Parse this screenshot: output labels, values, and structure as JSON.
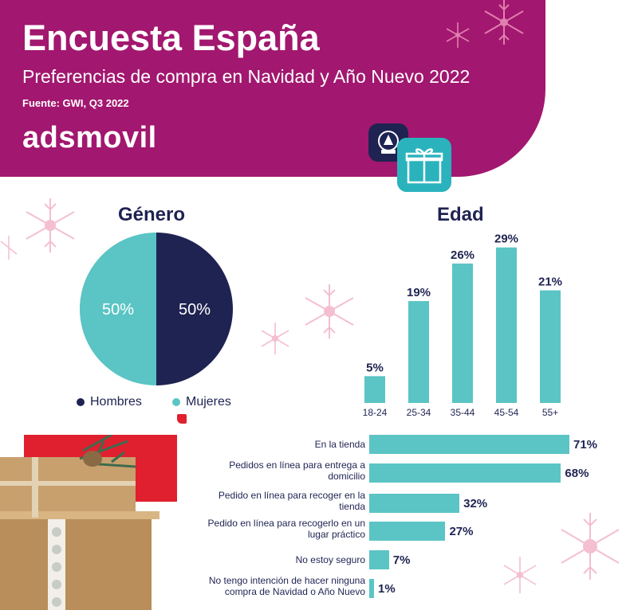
{
  "header": {
    "title": "Encuesta España",
    "subtitle": "Preferencias de compra en Navidad y Año Nuevo 2022",
    "source": "Fuente: GWI, Q3 2022",
    "logo_text": "adsmovil"
  },
  "colors": {
    "brand": "#a2176f",
    "navy": "#1f2352",
    "teal": "#5bc4c4",
    "red_accent": "#e0202e",
    "snow_pink": "#f6c9d6"
  },
  "icons": [
    "snowglobe-icon",
    "gift-icon",
    "snowflake-icon"
  ],
  "chart_data": [
    {
      "type": "pie",
      "title": "Género",
      "labels": [
        "Hombres",
        "Mujeres"
      ],
      "values": [
        50,
        50
      ],
      "value_labels": [
        "50%",
        "50%"
      ],
      "colors": [
        "#1f2352",
        "#5bc4c4"
      ],
      "legend": [
        "Hombres",
        "Mujeres"
      ]
    },
    {
      "type": "bar",
      "title": "Edad",
      "categories": [
        "18-24",
        "25-34",
        "35-44",
        "45-54",
        "55+"
      ],
      "values": [
        5,
        19,
        26,
        29,
        21
      ],
      "value_labels": [
        "5%",
        "19%",
        "26%",
        "29%",
        "21%"
      ],
      "ylim": [
        0,
        30
      ]
    },
    {
      "type": "bar",
      "orientation": "horizontal",
      "title": "",
      "categories": [
        "En la tienda",
        "Pedidos en línea para entrega a domicilio",
        "Pedido en línea para recoger en la tienda",
        "Pedido en línea para recogerlo en un lugar práctico",
        "No estoy seguro",
        "No tengo intención de hacer ninguna compra de Navidad o Año Nuevo"
      ],
      "category_lines": [
        [
          "En la tienda"
        ],
        [
          "Pedidos en línea para entrega a",
          "domicilio"
        ],
        [
          "Pedido en línea para recoger en la",
          "tienda"
        ],
        [
          "Pedido en línea para recogerlo en un",
          "lugar práctico"
        ],
        [
          "No estoy seguro"
        ],
        [
          "No tengo intención de hacer ninguna",
          "compra de Navidad o Año Nuevo"
        ]
      ],
      "values": [
        71,
        68,
        32,
        27,
        7,
        1
      ],
      "value_labels": [
        "71%",
        "68%",
        "32%",
        "27%",
        "7%",
        "1%"
      ],
      "xlim": [
        0,
        71
      ]
    }
  ]
}
